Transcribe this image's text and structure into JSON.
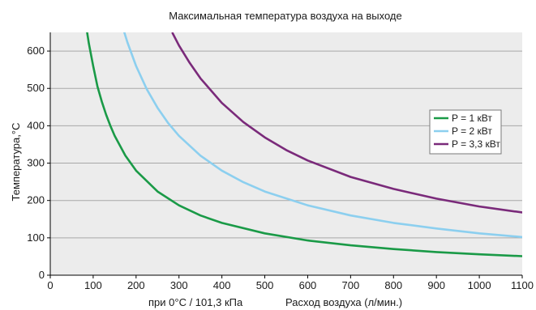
{
  "chart_data": {
    "type": "line",
    "title": "Максимальная температура воздуха на выходе",
    "xlabel_left": "при 0°C / 101,3 кПа",
    "xlabel": "Расход воздуха (л/мин.)",
    "ylabel": "Температура,°C",
    "xlim": [
      0,
      1100
    ],
    "ylim": [
      0,
      650
    ],
    "x_ticks": [
      "0",
      "100",
      "200",
      "300",
      "400",
      "500",
      "600",
      "700",
      "800",
      "900",
      "1000",
      "1100"
    ],
    "y_ticks": [
      "0",
      "100",
      "200",
      "300",
      "400",
      "500",
      "600"
    ],
    "grid": "horizontal",
    "legend_position": "right",
    "series": [
      {
        "name": "P = 1 кВт",
        "color": "#1a9a47",
        "x": [
          85,
          90,
          100,
          110,
          120,
          130,
          140,
          150,
          175,
          200,
          250,
          300,
          350,
          400,
          500,
          600,
          700,
          800,
          900,
          1000,
          1100
        ],
        "y": [
          656,
          620,
          560,
          505,
          465,
          430,
          400,
          373,
          320,
          280,
          224,
          187,
          160,
          140,
          112,
          93,
          80,
          70,
          62,
          56,
          51
        ]
      },
      {
        "name": "P = 2 кВт",
        "color": "#8ccfef",
        "x": [
          170,
          180,
          200,
          225,
          250,
          275,
          300,
          350,
          400,
          450,
          500,
          600,
          700,
          800,
          900,
          1000,
          1100
        ],
        "y": [
          660,
          623,
          560,
          498,
          448,
          407,
          373,
          320,
          280,
          249,
          224,
          187,
          160,
          140,
          125,
          112,
          102
        ]
      },
      {
        "name": "P = 3,3 кВт",
        "color": "#7a2a7a",
        "x": [
          285,
          300,
          325,
          350,
          400,
          450,
          500,
          550,
          600,
          700,
          800,
          900,
          1000,
          1100
        ],
        "y": [
          648,
          615,
          568,
          527,
          461,
          410,
          369,
          335,
          307,
          263,
          231,
          205,
          184,
          168
        ]
      }
    ]
  }
}
